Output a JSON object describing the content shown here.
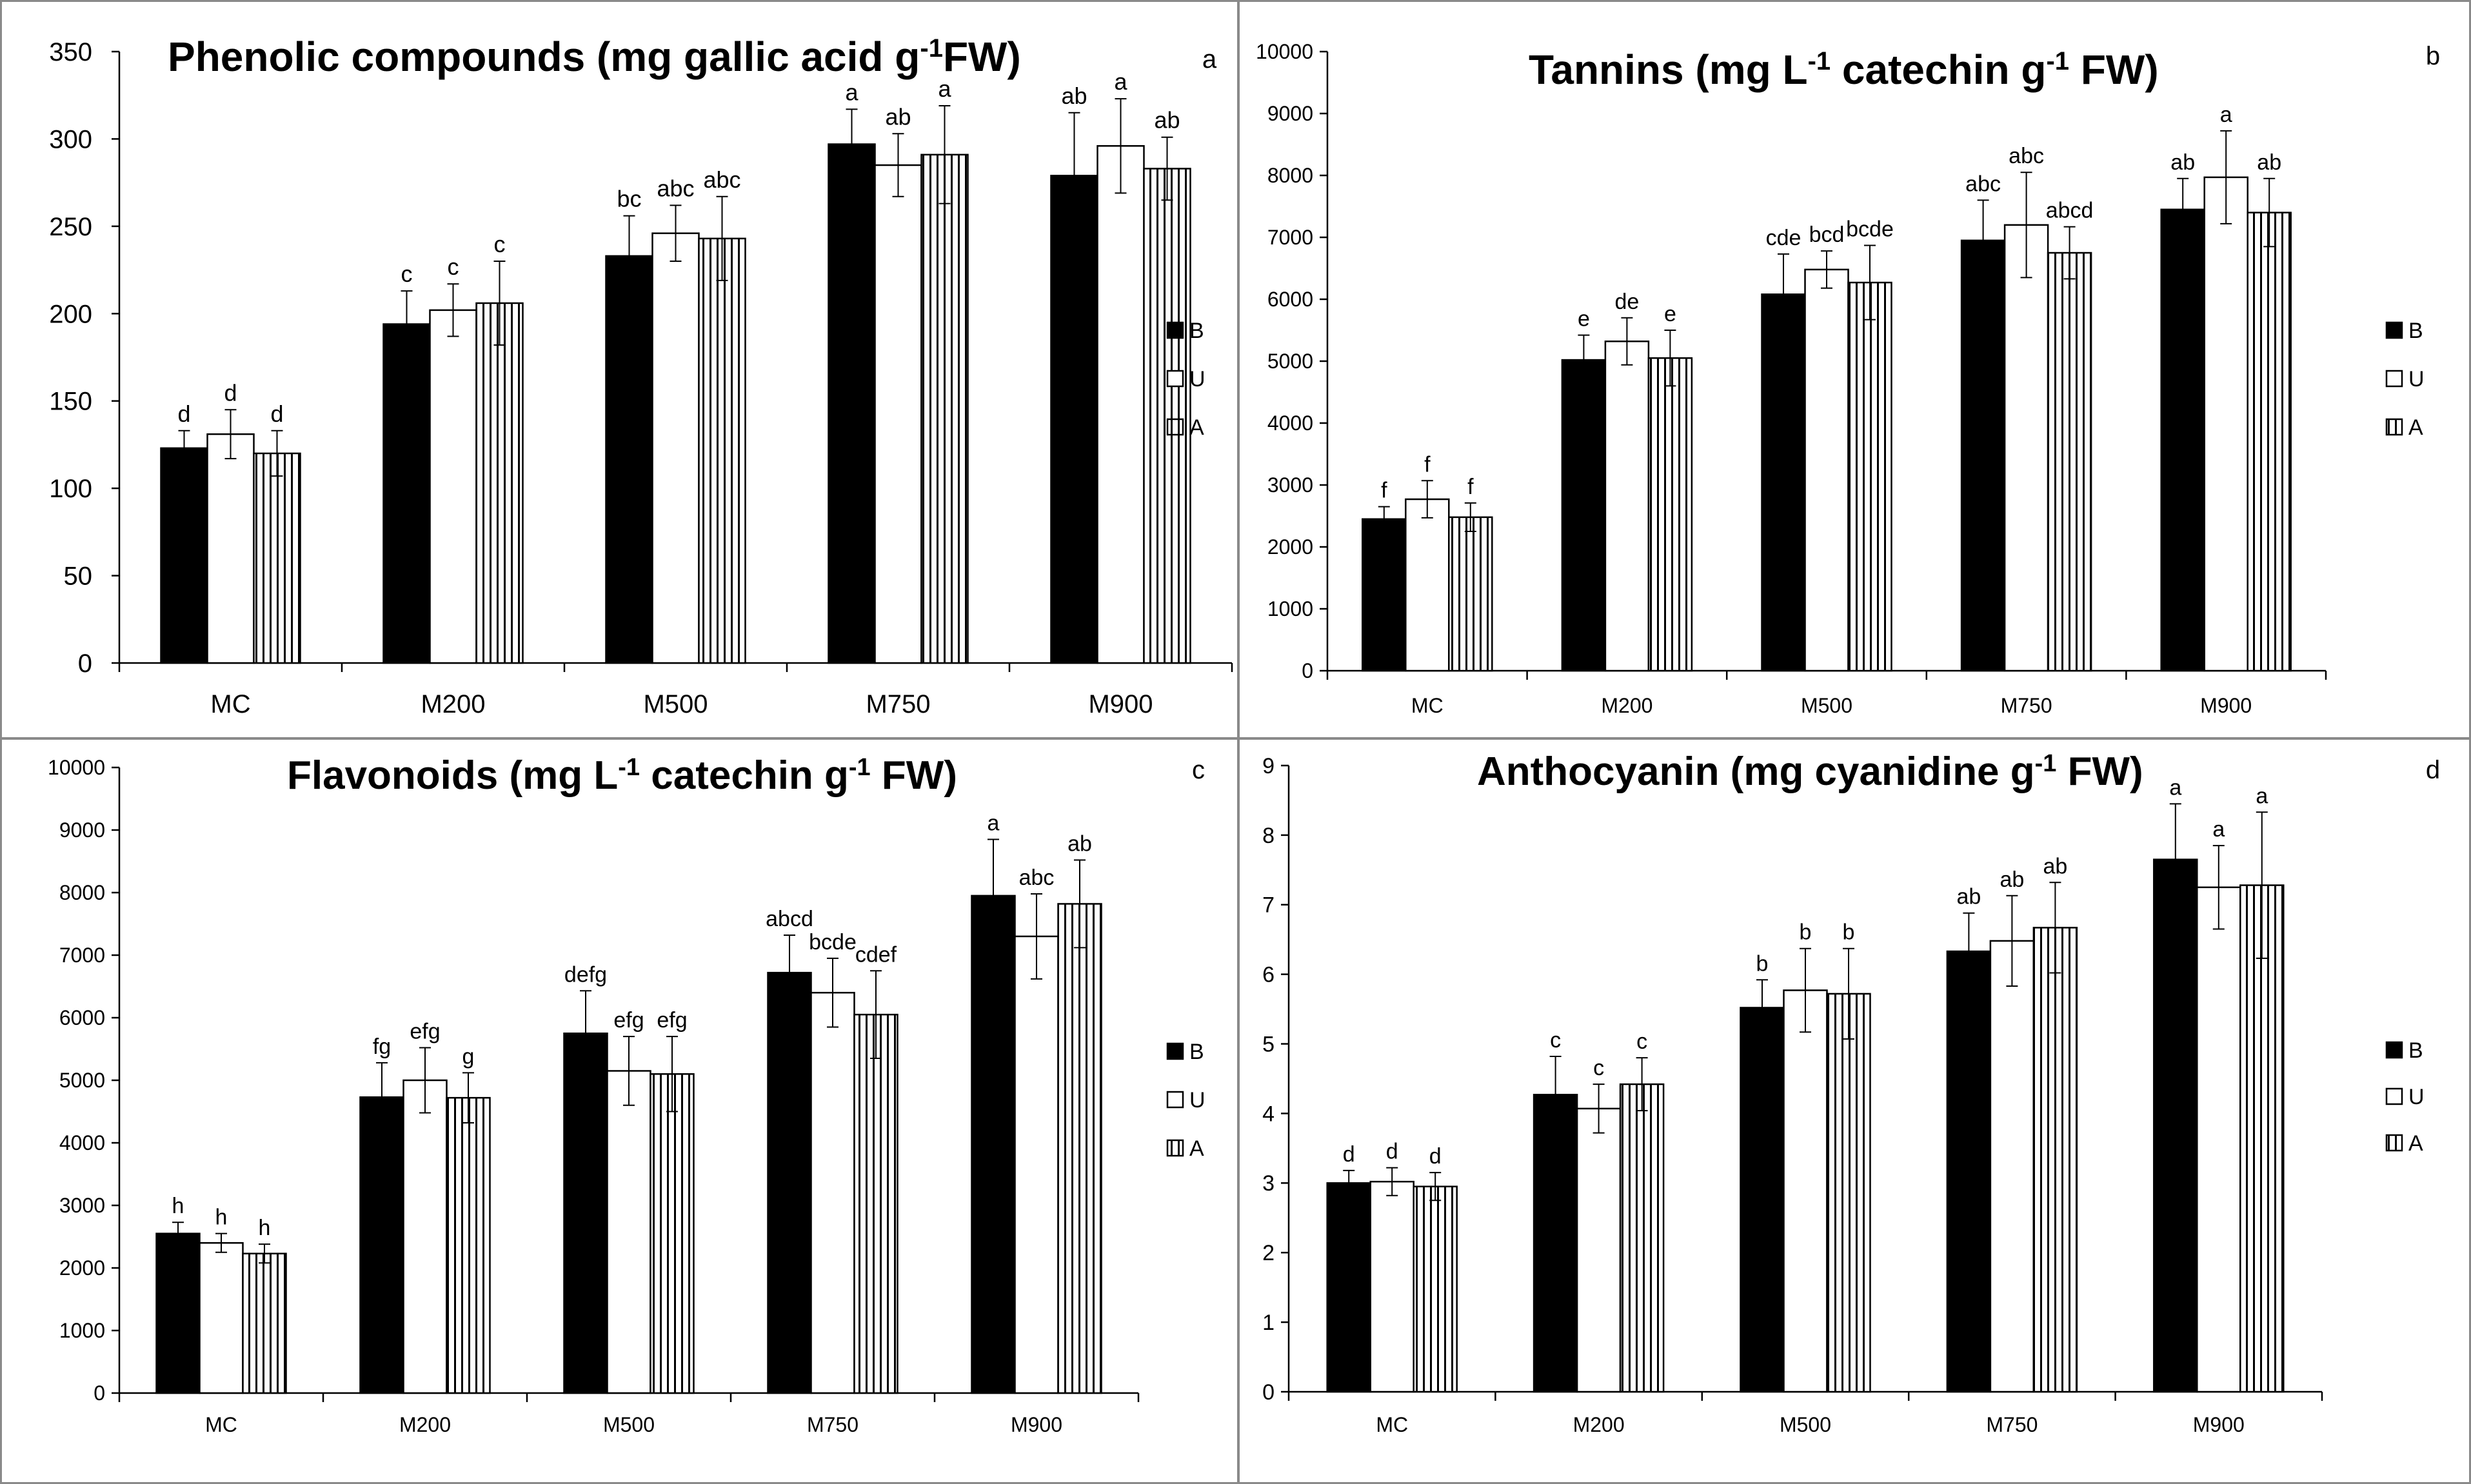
{
  "figure": {
    "series_names": [
      "B",
      "U",
      "A"
    ],
    "series_colors": [
      "#000000",
      "#ffffff",
      "#ffffff"
    ],
    "series_patterns": [
      "solid",
      "none",
      "vertical-stripes"
    ]
  },
  "chart_data": [
    {
      "type": "bar",
      "panel_letter": "a",
      "title_main": "Phenolic compounds (mg gallic acid g",
      "title_sup": "-1",
      "title_tail": "FW)",
      "categories": [
        "MC",
        "M200",
        "M500",
        "M750",
        "M900"
      ],
      "ylim": [
        0,
        350
      ],
      "ytick_values": [
        0,
        50,
        100,
        150,
        200,
        250,
        300,
        350
      ],
      "ytick_labels": [
        "0",
        "50",
        "100",
        "150",
        "200",
        "250",
        "300",
        "350"
      ],
      "grid": false,
      "legend": "right",
      "series": [
        {
          "name": "B",
          "values": [
            123,
            194,
            233,
            297,
            279
          ],
          "errors": [
            10,
            19,
            23,
            20,
            36
          ],
          "letters": [
            "d",
            "c",
            "bc",
            "a",
            "ab"
          ]
        },
        {
          "name": "U",
          "values": [
            131,
            202,
            246,
            285,
            296
          ],
          "errors": [
            14,
            15,
            16,
            18,
            27
          ],
          "letters": [
            "d",
            "c",
            "abc",
            "ab",
            "a"
          ]
        },
        {
          "name": "A",
          "values": [
            120,
            206,
            243,
            291,
            283
          ],
          "errors": [
            13,
            24,
            24,
            28,
            18
          ],
          "letters": [
            "d",
            "c",
            "abc",
            "a",
            "ab"
          ]
        }
      ]
    },
    {
      "type": "bar",
      "panel_letter": "b",
      "title_main": "Tannins  (mg L",
      "title_sup": "-1",
      "title_tail": " catechin g",
      "title_sup2": "-1",
      "title_tail2": " FW)",
      "categories": [
        "MC",
        "M200",
        "M500",
        "M750",
        "M900"
      ],
      "ylim": [
        0,
        10000
      ],
      "ytick_values": [
        0,
        1000,
        2000,
        3000,
        4000,
        5000,
        6000,
        7000,
        8000,
        9000,
        10000
      ],
      "ytick_labels": [
        "0",
        "1000",
        "2000",
        "3000",
        "4000",
        "5000",
        "6000",
        "7000",
        "8000",
        "9000",
        "10000"
      ],
      "grid": false,
      "legend": "right",
      "series": [
        {
          "name": "B",
          "values": [
            2450,
            5020,
            6080,
            6950,
            7450
          ],
          "errors": [
            200,
            400,
            650,
            650,
            500
          ],
          "letters": [
            "f",
            "e",
            "cde",
            "abc",
            "ab"
          ]
        },
        {
          "name": "U",
          "values": [
            2770,
            5320,
            6480,
            7200,
            7970
          ],
          "errors": [
            300,
            380,
            300,
            850,
            750
          ],
          "letters": [
            "f",
            "de",
            "bcd",
            "abc",
            "a"
          ]
        },
        {
          "name": "A",
          "values": [
            2480,
            5050,
            6270,
            6750,
            7400
          ],
          "errors": [
            230,
            450,
            600,
            420,
            550
          ],
          "letters": [
            "f",
            "e",
            "bcde",
            "abcd",
            "ab"
          ]
        }
      ]
    },
    {
      "type": "bar",
      "panel_letter": "c",
      "title_main": "Flavonoids (mg L",
      "title_sup": "-1",
      "title_tail": " catechin g",
      "title_sup2": "-1",
      "title_tail2": " FW)",
      "categories": [
        "MC",
        "M200",
        "M500",
        "M750",
        "M900"
      ],
      "ylim": [
        0,
        10000
      ],
      "ytick_values": [
        0,
        1000,
        2000,
        3000,
        4000,
        5000,
        6000,
        7000,
        8000,
        9000,
        10000
      ],
      "ytick_labels": [
        "0",
        "1000",
        "2000",
        "3000",
        "4000",
        "5000",
        "6000",
        "7000",
        "8000",
        "9000",
        "10000"
      ],
      "grid": false,
      "legend": "right",
      "series": [
        {
          "name": "B",
          "values": [
            2550,
            4730,
            5750,
            6720,
            7950
          ],
          "errors": [
            180,
            550,
            680,
            600,
            900
          ],
          "letters": [
            "h",
            "fg",
            "defg",
            "abcd",
            "a"
          ]
        },
        {
          "name": "U",
          "values": [
            2400,
            5000,
            5150,
            6400,
            7300
          ],
          "errors": [
            150,
            520,
            550,
            550,
            680
          ],
          "letters": [
            "h",
            "efg",
            "efg",
            "bcde",
            "abc"
          ]
        },
        {
          "name": "A",
          "values": [
            2230,
            4720,
            5100,
            6050,
            7820
          ],
          "errors": [
            150,
            400,
            600,
            700,
            700
          ],
          "letters": [
            "h",
            "g",
            "efg",
            "cdef",
            "ab"
          ]
        }
      ]
    },
    {
      "type": "bar",
      "panel_letter": "d",
      "title_main": "Anthocyanin (mg cyanidine g",
      "title_sup": "-1",
      "title_tail": " FW)",
      "categories": [
        "MC",
        "M200",
        "M500",
        "M750",
        "M900"
      ],
      "ylim": [
        0,
        9
      ],
      "ytick_values": [
        0,
        1,
        2,
        3,
        4,
        5,
        6,
        7,
        8,
        9
      ],
      "ytick_labels": [
        "0",
        "1",
        "2",
        "3",
        "4",
        "5",
        "6",
        "7",
        "8",
        "9"
      ],
      "grid": false,
      "legend": "right",
      "series": [
        {
          "name": "B",
          "values": [
            3.0,
            4.27,
            5.52,
            6.33,
            7.65
          ],
          "errors": [
            0.18,
            0.55,
            0.4,
            0.55,
            0.8
          ],
          "letters": [
            "d",
            "c",
            "b",
            "ab",
            "a"
          ]
        },
        {
          "name": "U",
          "values": [
            3.02,
            4.07,
            5.77,
            6.48,
            7.25
          ],
          "errors": [
            0.2,
            0.35,
            0.6,
            0.65,
            0.6
          ],
          "letters": [
            "d",
            "c",
            "b",
            "ab",
            "a"
          ]
        },
        {
          "name": "A",
          "values": [
            2.95,
            4.42,
            5.72,
            6.67,
            7.28
          ],
          "errors": [
            0.2,
            0.38,
            0.65,
            0.65,
            1.05
          ],
          "letters": [
            "d",
            "c",
            "b",
            "ab",
            "a"
          ]
        }
      ]
    }
  ]
}
